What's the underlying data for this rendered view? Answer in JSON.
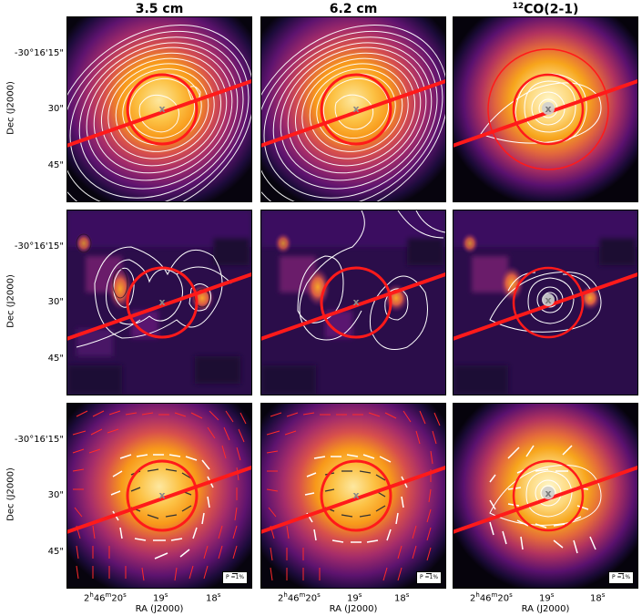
{
  "column_titles": {
    "c1": "3.5 cm",
    "c2": "6.2 cm",
    "c3_sup": "12",
    "c3_main": "CO(2-1)"
  },
  "y_axis": {
    "label": "Dec (J2000)",
    "ticks": [
      "-30°16'15\"",
      "30\"",
      "45\""
    ]
  },
  "x_axis": {
    "label": "RA (J2000)",
    "ticks": {
      "t1_a": "2",
      "t1_sup1": "h",
      "t1_b": "46",
      "t1_sup2": "m",
      "t1_c": "20",
      "t1_sup3": "s",
      "t2": "19",
      "t2_sup": "s",
      "t3": "18",
      "t3_sup": "s"
    }
  },
  "polarization_key": "P =1%",
  "colors": {
    "contour": "#ffffff",
    "ring": "#ff1a1a",
    "vector_outer": "#ff2a2a",
    "vector_inner": "#ffffff",
    "center_marker": "#8a8a8a",
    "colormap": "inferno"
  },
  "marker_symbol": "x"
}
